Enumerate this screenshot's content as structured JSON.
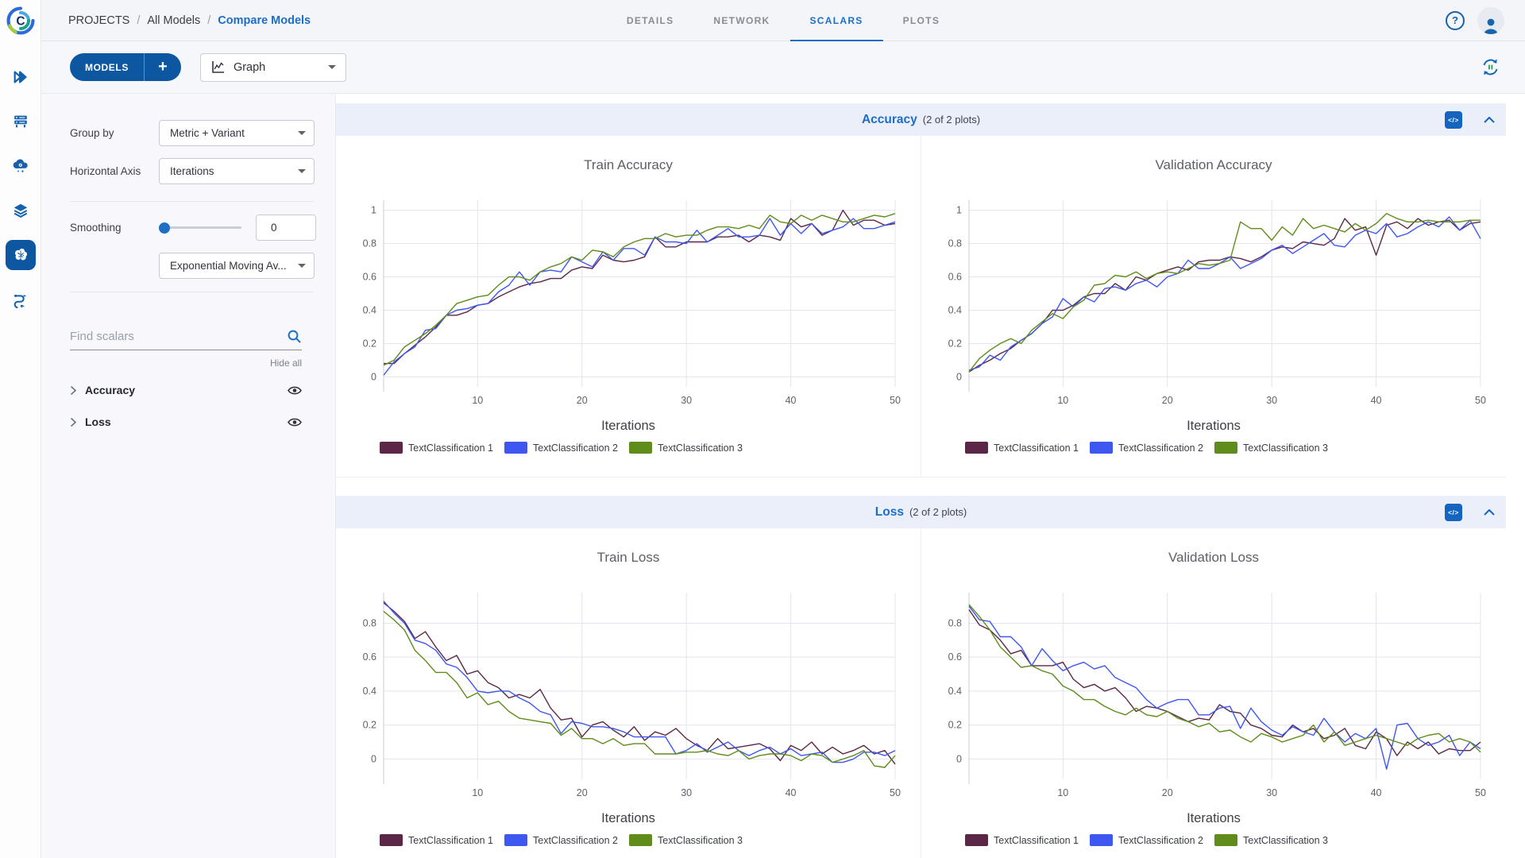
{
  "app": {
    "breadcrumb": {
      "root": "PROJECTS",
      "parent": "All Models",
      "current": "Compare Models",
      "separator": "/"
    }
  },
  "tabs": [
    {
      "label": "DETAILS",
      "active": false
    },
    {
      "label": "NETWORK",
      "active": false
    },
    {
      "label": "SCALARS",
      "active": true
    },
    {
      "label": "PLOTS",
      "active": false
    }
  ],
  "toolbar": {
    "models_label": "MODELS",
    "models_add_glyph": "+",
    "view_selector_value": "Graph"
  },
  "icons": {
    "logo_letter": "C",
    "help_glyph": "?",
    "code_chip_glyph": "</>"
  },
  "rail": {
    "items": [
      {
        "name": "projects",
        "active": false
      },
      {
        "name": "workers-queues",
        "active": false
      },
      {
        "name": "cloud-autoscaler",
        "active": false
      },
      {
        "name": "datasets",
        "active": false
      },
      {
        "name": "models",
        "active": true
      },
      {
        "name": "pipelines",
        "active": false
      }
    ]
  },
  "panel": {
    "group_by_label": "Group by",
    "group_by_value": "Metric + Variant",
    "horizontal_axis_label": "Horizontal Axis",
    "horizontal_axis_value": "Iterations",
    "smoothing_label": "Smoothing",
    "smoothing_value": "0",
    "smoothing_method_value": "Exponential Moving Av...",
    "find_placeholder": "Find scalars",
    "hide_all_label": "Hide all",
    "tree": [
      {
        "label": "Accuracy"
      },
      {
        "label": "Loss"
      }
    ]
  },
  "sections": [
    {
      "title": "Accuracy",
      "count": "(2 of 2 plots)",
      "charts": [
        0,
        1
      ]
    },
    {
      "title": "Loss",
      "count": "(2 of 2 plots)",
      "charts": [
        2,
        3
      ]
    }
  ],
  "chart_data": [
    {
      "type": "line",
      "title": "Train Accuracy",
      "xlabel": "Iterations",
      "x_range": [
        1,
        50
      ],
      "x_ticks": [
        10,
        20,
        30,
        40,
        50
      ],
      "y_range": [
        -0.06,
        1.06
      ],
      "y_ticks": [
        0,
        0.2,
        0.4,
        0.6,
        0.8,
        1
      ],
      "grid": true,
      "legend_position": "bottom",
      "series": [
        {
          "name": "TextClassification 1",
          "color": "#5c2746",
          "values": [
            0.08,
            0.08,
            0.14,
            0.19,
            0.24,
            0.3,
            0.37,
            0.37,
            0.39,
            0.43,
            0.44,
            0.48,
            0.51,
            0.54,
            0.56,
            0.57,
            0.59,
            0.59,
            0.64,
            0.66,
            0.65,
            0.73,
            0.7,
            0.69,
            0.7,
            0.72,
            0.84,
            0.78,
            0.78,
            0.81,
            0.81,
            0.81,
            0.84,
            0.84,
            0.85,
            0.81,
            0.85,
            0.84,
            0.82,
            0.95,
            0.9,
            0.92,
            0.85,
            0.88,
            1.0,
            0.91,
            0.94,
            0.94,
            0.91,
            0.92
          ]
        },
        {
          "name": "TextClassification 2",
          "color": "#3e57f0",
          "values": [
            0.01,
            0.09,
            0.14,
            0.18,
            0.28,
            0.29,
            0.37,
            0.4,
            0.41,
            0.43,
            0.44,
            0.51,
            0.55,
            0.63,
            0.55,
            0.63,
            0.64,
            0.63,
            0.72,
            0.69,
            0.66,
            0.75,
            0.7,
            0.77,
            0.77,
            0.73,
            0.84,
            0.81,
            0.81,
            0.8,
            0.88,
            0.81,
            0.85,
            0.89,
            0.84,
            0.84,
            0.85,
            0.95,
            0.85,
            0.92,
            0.86,
            0.92,
            0.86,
            0.88,
            0.9,
            0.95,
            0.89,
            0.89,
            0.91,
            0.93
          ]
        },
        {
          "name": "TextClassification 3",
          "color": "#5f8c1a",
          "values": [
            0.07,
            0.1,
            0.18,
            0.22,
            0.26,
            0.31,
            0.37,
            0.44,
            0.46,
            0.48,
            0.49,
            0.55,
            0.6,
            0.6,
            0.58,
            0.63,
            0.66,
            0.68,
            0.72,
            0.7,
            0.76,
            0.75,
            0.72,
            0.78,
            0.81,
            0.83,
            0.83,
            0.86,
            0.84,
            0.85,
            0.85,
            0.88,
            0.9,
            0.9,
            0.89,
            0.91,
            0.89,
            0.97,
            0.93,
            0.92,
            0.97,
            0.94,
            0.97,
            0.95,
            0.93,
            0.93,
            0.95,
            0.97,
            0.96,
            0.98
          ]
        }
      ]
    },
    {
      "type": "line",
      "title": "Validation Accuracy",
      "xlabel": "Iterations",
      "x_range": [
        1,
        50
      ],
      "x_ticks": [
        10,
        20,
        30,
        40,
        50
      ],
      "y_range": [
        -0.06,
        1.06
      ],
      "y_ticks": [
        0,
        0.2,
        0.4,
        0.6,
        0.8,
        1
      ],
      "grid": true,
      "legend_position": "bottom",
      "series": [
        {
          "name": "TextClassification 1",
          "color": "#5c2746",
          "values": [
            0.03,
            0.07,
            0.1,
            0.14,
            0.17,
            0.22,
            0.26,
            0.32,
            0.4,
            0.4,
            0.43,
            0.48,
            0.5,
            0.5,
            0.56,
            0.52,
            0.6,
            0.58,
            0.62,
            0.64,
            0.66,
            0.64,
            0.69,
            0.7,
            0.7,
            0.72,
            0.71,
            0.69,
            0.72,
            0.76,
            0.78,
            0.77,
            0.81,
            0.8,
            0.79,
            0.83,
            0.95,
            0.88,
            0.9,
            0.73,
            0.91,
            0.93,
            0.89,
            0.95,
            0.91,
            0.93,
            0.94,
            0.88,
            0.92,
            0.93
          ]
        },
        {
          "name": "TextClassification 2",
          "color": "#3e57f0",
          "values": [
            0.04,
            0.06,
            0.13,
            0.1,
            0.18,
            0.22,
            0.26,
            0.32,
            0.36,
            0.47,
            0.42,
            0.48,
            0.45,
            0.53,
            0.54,
            0.52,
            0.56,
            0.58,
            0.54,
            0.6,
            0.62,
            0.7,
            0.65,
            0.65,
            0.68,
            0.72,
            0.65,
            0.68,
            0.71,
            0.76,
            0.79,
            0.74,
            0.78,
            0.82,
            0.86,
            0.79,
            0.78,
            0.85,
            0.88,
            0.86,
            0.92,
            0.84,
            0.86,
            0.9,
            0.93,
            0.9,
            0.96,
            0.88,
            0.94,
            0.83
          ]
        },
        {
          "name": "TextClassification 3",
          "color": "#5f8c1a",
          "values": [
            0.03,
            0.11,
            0.16,
            0.2,
            0.23,
            0.2,
            0.28,
            0.33,
            0.38,
            0.35,
            0.42,
            0.46,
            0.55,
            0.56,
            0.61,
            0.6,
            0.63,
            0.59,
            0.62,
            0.63,
            0.62,
            0.65,
            0.68,
            0.67,
            0.68,
            0.7,
            0.93,
            0.89,
            0.89,
            0.82,
            0.9,
            0.85,
            0.95,
            0.89,
            0.91,
            0.89,
            0.87,
            0.92,
            0.88,
            0.92,
            0.98,
            0.95,
            0.93,
            0.93,
            0.94,
            0.93,
            0.93,
            0.93,
            0.94,
            0.94
          ]
        }
      ]
    },
    {
      "type": "line",
      "title": "Train Loss",
      "xlabel": "Iterations",
      "x_range": [
        1,
        50
      ],
      "x_ticks": [
        10,
        20,
        30,
        40,
        50
      ],
      "y_range": [
        -0.12,
        0.98
      ],
      "y_ticks": [
        0,
        0.2,
        0.4,
        0.6,
        0.8
      ],
      "grid": true,
      "legend_position": "bottom",
      "series": [
        {
          "name": "TextClassification 1",
          "color": "#5c2746",
          "values": [
            0.92,
            0.87,
            0.81,
            0.71,
            0.75,
            0.66,
            0.58,
            0.61,
            0.5,
            0.52,
            0.45,
            0.42,
            0.36,
            0.38,
            0.36,
            0.41,
            0.3,
            0.23,
            0.24,
            0.13,
            0.2,
            0.22,
            0.17,
            0.13,
            0.19,
            0.11,
            0.16,
            0.14,
            0.18,
            0.12,
            0.08,
            0.05,
            0.12,
            0.06,
            0.07,
            0.08,
            0.09,
            0.06,
            -0.01,
            0.08,
            0.05,
            0.1,
            0.03,
            0.07,
            0.03,
            0.05,
            0.08,
            0.03,
            0.05,
            -0.03
          ]
        },
        {
          "name": "TextClassification 2",
          "color": "#3e57f0",
          "values": [
            0.93,
            0.86,
            0.8,
            0.7,
            0.68,
            0.64,
            0.56,
            0.54,
            0.48,
            0.4,
            0.39,
            0.4,
            0.4,
            0.36,
            0.33,
            0.28,
            0.26,
            0.15,
            0.22,
            0.21,
            0.19,
            0.19,
            0.18,
            0.16,
            0.13,
            0.13,
            0.13,
            0.13,
            0.03,
            0.05,
            0.09,
            0.04,
            0.07,
            0.1,
            0.05,
            0.02,
            0.05,
            0.07,
            0.03,
            0.06,
            0.02,
            0.03,
            0.04,
            -0.02,
            -0.02,
            0.0,
            0.04,
            0.04,
            0.02,
            0.05
          ]
        },
        {
          "name": "TextClassification 3",
          "color": "#5f8c1a",
          "values": [
            0.87,
            0.82,
            0.76,
            0.64,
            0.58,
            0.51,
            0.51,
            0.45,
            0.36,
            0.39,
            0.32,
            0.34,
            0.28,
            0.24,
            0.23,
            0.22,
            0.21,
            0.14,
            0.18,
            0.12,
            0.12,
            0.09,
            0.12,
            0.08,
            0.09,
            0.09,
            0.03,
            0.03,
            0.03,
            0.04,
            0.04,
            0.05,
            0.03,
            0.02,
            0.05,
            0.0,
            0.02,
            0.03,
            0.03,
            0.02,
            -0.01,
            0.03,
            0.02,
            -0.02,
            0.0,
            0.02,
            0.05,
            -0.04,
            -0.05,
            0.02
          ]
        }
      ]
    },
    {
      "type": "line",
      "title": "Validation Loss",
      "xlabel": "Iterations",
      "x_range": [
        1,
        50
      ],
      "x_ticks": [
        10,
        20,
        30,
        40,
        50
      ],
      "y_range": [
        -0.12,
        0.98
      ],
      "y_ticks": [
        0,
        0.2,
        0.4,
        0.6,
        0.8
      ],
      "grid": true,
      "legend_position": "bottom",
      "series": [
        {
          "name": "TextClassification 1",
          "color": "#5c2746",
          "values": [
            0.88,
            0.79,
            0.76,
            0.7,
            0.62,
            0.64,
            0.55,
            0.55,
            0.55,
            0.57,
            0.47,
            0.42,
            0.44,
            0.4,
            0.42,
            0.36,
            0.28,
            0.31,
            0.3,
            0.28,
            0.25,
            0.22,
            0.24,
            0.23,
            0.32,
            0.28,
            0.27,
            0.2,
            0.18,
            0.14,
            0.13,
            0.2,
            0.16,
            0.18,
            0.12,
            0.14,
            0.18,
            0.08,
            0.06,
            0.16,
            0.12,
            0.02,
            0.1,
            0.06,
            0.1,
            0.03,
            0.06,
            0.05,
            0.05,
            0.1
          ]
        },
        {
          "name": "TextClassification 2",
          "color": "#3e57f0",
          "values": [
            0.9,
            0.82,
            0.81,
            0.72,
            0.72,
            0.66,
            0.55,
            0.65,
            0.58,
            0.52,
            0.55,
            0.57,
            0.53,
            0.55,
            0.48,
            0.45,
            0.42,
            0.35,
            0.3,
            0.33,
            0.35,
            0.35,
            0.26,
            0.26,
            0.3,
            0.31,
            0.18,
            0.3,
            0.22,
            0.17,
            0.14,
            0.19,
            0.16,
            0.14,
            0.24,
            0.16,
            0.1,
            0.15,
            0.12,
            0.18,
            -0.06,
            0.2,
            0.21,
            0.12,
            0.08,
            0.1,
            0.14,
            0.02,
            0.1,
            0.06
          ]
        },
        {
          "name": "TextClassification 3",
          "color": "#5f8c1a",
          "values": [
            0.91,
            0.84,
            0.76,
            0.66,
            0.6,
            0.54,
            0.55,
            0.52,
            0.5,
            0.43,
            0.4,
            0.35,
            0.35,
            0.31,
            0.28,
            0.26,
            0.3,
            0.26,
            0.25,
            0.28,
            0.24,
            0.22,
            0.19,
            0.21,
            0.16,
            0.17,
            0.13,
            0.1,
            0.15,
            0.13,
            0.1,
            0.12,
            0.14,
            0.2,
            0.1,
            0.16,
            0.08,
            0.1,
            0.12,
            0.14,
            0.12,
            0.1,
            0.08,
            0.12,
            0.14,
            0.15,
            0.1,
            0.12,
            0.1,
            0.04
          ]
        }
      ]
    }
  ]
}
